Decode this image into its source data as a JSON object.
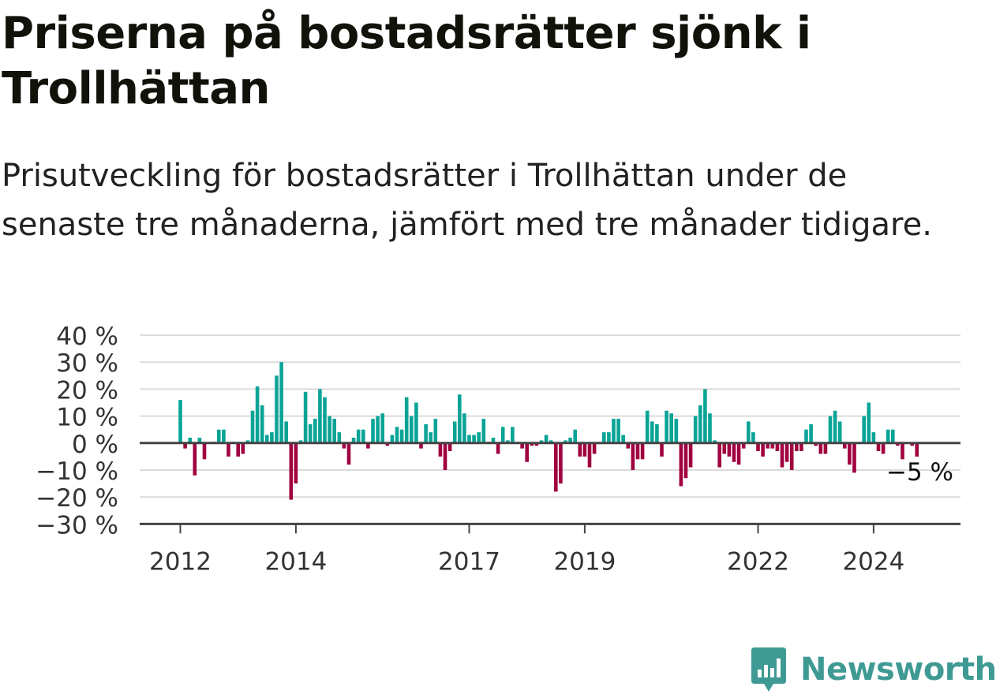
{
  "title": "Priserna på bostadsrätter sjönk i Trollhättan",
  "subtitle": "Prisutveckling för bostadsrätter i Trollhättan under de senaste tre månaderna, jämfört med tre månader tidigare.",
  "brand": {
    "name": "Newsworthy",
    "icon": "newsworthy-logo-icon",
    "color": "#3f9a94"
  },
  "colors": {
    "positive": "#0aa497",
    "negative": "#a0003f",
    "grid": "#dcdcdc",
    "axis": "#444444",
    "text": "#333333"
  },
  "chart_data": {
    "type": "bar",
    "title": "",
    "xlabel": "",
    "ylabel": "",
    "ylim": [
      -30,
      40
    ],
    "y_ticks": [
      40,
      30,
      20,
      10,
      0,
      -10,
      -20,
      -30
    ],
    "y_tick_labels": [
      "40 %",
      "30 %",
      "20 %",
      "10 %",
      "0 %",
      "−10 %",
      "−20 %",
      "−30 %"
    ],
    "x_tick_labels": [
      {
        "label": "2012",
        "date": "2012-01"
      },
      {
        "label": "2014",
        "date": "2014-01"
      },
      {
        "label": "2017",
        "date": "2017-01"
      },
      {
        "label": "2019",
        "date": "2019-01"
      },
      {
        "label": "2022",
        "date": "2022-01"
      },
      {
        "label": "2024",
        "date": "2024-01"
      }
    ],
    "grid": true,
    "legend": "none",
    "annotation": {
      "label": "−5 %",
      "date": "2024-09",
      "value": -5
    },
    "series": [
      {
        "values": [
          {
            "date": "2012-01",
            "v": 16
          },
          {
            "date": "2012-02",
            "v": -2
          },
          {
            "date": "2012-03",
            "v": 2
          },
          {
            "date": "2012-04",
            "v": -12
          },
          {
            "date": "2012-05",
            "v": 2
          },
          {
            "date": "2012-06",
            "v": -6
          },
          {
            "date": "2012-08",
            "v": 0.5
          },
          {
            "date": "2012-09",
            "v": 5
          },
          {
            "date": "2012-10",
            "v": 5
          },
          {
            "date": "2012-11",
            "v": -5
          },
          {
            "date": "2012-12",
            "v": 0.5
          },
          {
            "date": "2013-01",
            "v": -5
          },
          {
            "date": "2013-02",
            "v": -4
          },
          {
            "date": "2013-03",
            "v": 1
          },
          {
            "date": "2013-04",
            "v": 12
          },
          {
            "date": "2013-05",
            "v": 21
          },
          {
            "date": "2013-06",
            "v": 14
          },
          {
            "date": "2013-07",
            "v": 3
          },
          {
            "date": "2013-08",
            "v": 4
          },
          {
            "date": "2013-09",
            "v": 25
          },
          {
            "date": "2013-10",
            "v": 30
          },
          {
            "date": "2013-11",
            "v": 8
          },
          {
            "date": "2013-12",
            "v": -21
          },
          {
            "date": "2014-01",
            "v": -15
          },
          {
            "date": "2014-02",
            "v": 1
          },
          {
            "date": "2014-03",
            "v": 19
          },
          {
            "date": "2014-04",
            "v": 7
          },
          {
            "date": "2014-05",
            "v": 9
          },
          {
            "date": "2014-06",
            "v": 20
          },
          {
            "date": "2014-07",
            "v": 17
          },
          {
            "date": "2014-08",
            "v": 10
          },
          {
            "date": "2014-09",
            "v": 9
          },
          {
            "date": "2014-10",
            "v": 4
          },
          {
            "date": "2014-11",
            "v": -2
          },
          {
            "date": "2014-12",
            "v": -8
          },
          {
            "date": "2015-01",
            "v": 2
          },
          {
            "date": "2015-02",
            "v": 5
          },
          {
            "date": "2015-03",
            "v": 5
          },
          {
            "date": "2015-04",
            "v": -2
          },
          {
            "date": "2015-05",
            "v": 9
          },
          {
            "date": "2015-06",
            "v": 10
          },
          {
            "date": "2015-07",
            "v": 11
          },
          {
            "date": "2015-08",
            "v": -1
          },
          {
            "date": "2015-09",
            "v": 3
          },
          {
            "date": "2015-10",
            "v": 6
          },
          {
            "date": "2015-11",
            "v": 5
          },
          {
            "date": "2015-12",
            "v": 17
          },
          {
            "date": "2016-01",
            "v": 10
          },
          {
            "date": "2016-02",
            "v": 15
          },
          {
            "date": "2016-03",
            "v": -2
          },
          {
            "date": "2016-04",
            "v": 7
          },
          {
            "date": "2016-05",
            "v": 4
          },
          {
            "date": "2016-06",
            "v": 9
          },
          {
            "date": "2016-07",
            "v": -5
          },
          {
            "date": "2016-08",
            "v": -10
          },
          {
            "date": "2016-09",
            "v": -3
          },
          {
            "date": "2016-10",
            "v": 8
          },
          {
            "date": "2016-11",
            "v": 18
          },
          {
            "date": "2016-12",
            "v": 11
          },
          {
            "date": "2017-01",
            "v": 3
          },
          {
            "date": "2017-02",
            "v": 3
          },
          {
            "date": "2017-03",
            "v": 4
          },
          {
            "date": "2017-04",
            "v": 9
          },
          {
            "date": "2017-05",
            "v": 0.5
          },
          {
            "date": "2017-06",
            "v": 2
          },
          {
            "date": "2017-07",
            "v": -4
          },
          {
            "date": "2017-08",
            "v": 6
          },
          {
            "date": "2017-09",
            "v": 1
          },
          {
            "date": "2017-10",
            "v": 6
          },
          {
            "date": "2017-11",
            "v": 0.5
          },
          {
            "date": "2017-12",
            "v": -2
          },
          {
            "date": "2018-01",
            "v": -7
          },
          {
            "date": "2018-02",
            "v": -1
          },
          {
            "date": "2018-03",
            "v": -1
          },
          {
            "date": "2018-04",
            "v": 1
          },
          {
            "date": "2018-05",
            "v": 3
          },
          {
            "date": "2018-06",
            "v": 1
          },
          {
            "date": "2018-07",
            "v": -18
          },
          {
            "date": "2018-08",
            "v": -15
          },
          {
            "date": "2018-09",
            "v": 1
          },
          {
            "date": "2018-10",
            "v": 2
          },
          {
            "date": "2018-11",
            "v": 5
          },
          {
            "date": "2018-12",
            "v": -5
          },
          {
            "date": "2019-01",
            "v": -5
          },
          {
            "date": "2019-02",
            "v": -9
          },
          {
            "date": "2019-03",
            "v": -4
          },
          {
            "date": "2019-05",
            "v": 4
          },
          {
            "date": "2019-06",
            "v": 4
          },
          {
            "date": "2019-07",
            "v": 9
          },
          {
            "date": "2019-08",
            "v": 9
          },
          {
            "date": "2019-09",
            "v": 3
          },
          {
            "date": "2019-10",
            "v": -2
          },
          {
            "date": "2019-11",
            "v": -10
          },
          {
            "date": "2019-12",
            "v": -6
          },
          {
            "date": "2020-01",
            "v": -6
          },
          {
            "date": "2020-02",
            "v": 12
          },
          {
            "date": "2020-03",
            "v": 8
          },
          {
            "date": "2020-04",
            "v": 7
          },
          {
            "date": "2020-05",
            "v": -5
          },
          {
            "date": "2020-06",
            "v": 12
          },
          {
            "date": "2020-07",
            "v": 11
          },
          {
            "date": "2020-08",
            "v": 9
          },
          {
            "date": "2020-09",
            "v": -16
          },
          {
            "date": "2020-10",
            "v": -13
          },
          {
            "date": "2020-11",
            "v": -9
          },
          {
            "date": "2020-12",
            "v": 10
          },
          {
            "date": "2021-01",
            "v": 14
          },
          {
            "date": "2021-02",
            "v": 20
          },
          {
            "date": "2021-03",
            "v": 11
          },
          {
            "date": "2021-04",
            "v": 1
          },
          {
            "date": "2021-05",
            "v": -9
          },
          {
            "date": "2021-06",
            "v": -4
          },
          {
            "date": "2021-07",
            "v": -5
          },
          {
            "date": "2021-08",
            "v": -7
          },
          {
            "date": "2021-09",
            "v": -8
          },
          {
            "date": "2021-10",
            "v": -2
          },
          {
            "date": "2021-11",
            "v": 8
          },
          {
            "date": "2021-12",
            "v": 4
          },
          {
            "date": "2022-01",
            "v": -3
          },
          {
            "date": "2022-02",
            "v": -5
          },
          {
            "date": "2022-03",
            "v": -2
          },
          {
            "date": "2022-04",
            "v": -2
          },
          {
            "date": "2022-05",
            "v": -3
          },
          {
            "date": "2022-06",
            "v": -9
          },
          {
            "date": "2022-07",
            "v": -7
          },
          {
            "date": "2022-08",
            "v": -10
          },
          {
            "date": "2022-09",
            "v": -3
          },
          {
            "date": "2022-10",
            "v": -3
          },
          {
            "date": "2022-11",
            "v": 5
          },
          {
            "date": "2022-12",
            "v": 7
          },
          {
            "date": "2023-01",
            "v": -1
          },
          {
            "date": "2023-02",
            "v": -4
          },
          {
            "date": "2023-03",
            "v": -4
          },
          {
            "date": "2023-04",
            "v": 10
          },
          {
            "date": "2023-05",
            "v": 12
          },
          {
            "date": "2023-06",
            "v": 8
          },
          {
            "date": "2023-07",
            "v": -2
          },
          {
            "date": "2023-08",
            "v": -8
          },
          {
            "date": "2023-09",
            "v": -11
          },
          {
            "date": "2023-11",
            "v": 10
          },
          {
            "date": "2023-12",
            "v": 15
          },
          {
            "date": "2024-01",
            "v": 4
          },
          {
            "date": "2024-02",
            "v": -3
          },
          {
            "date": "2024-03",
            "v": -4
          },
          {
            "date": "2024-04",
            "v": 5
          },
          {
            "date": "2024-05",
            "v": 5
          },
          {
            "date": "2024-06",
            "v": -1
          },
          {
            "date": "2024-07",
            "v": -6
          },
          {
            "date": "2024-09",
            "v": -1
          },
          {
            "date": "2024-10",
            "v": -5
          }
        ]
      }
    ]
  }
}
